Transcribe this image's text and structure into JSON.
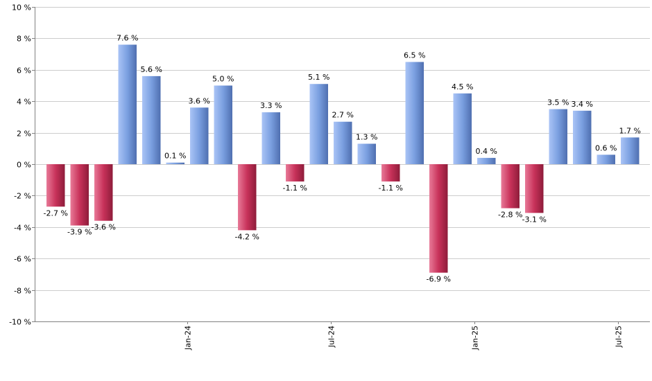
{
  "chart_data": {
    "type": "bar",
    "title": "",
    "xlabel": "",
    "ylabel": "",
    "ylim": [
      -10,
      10
    ],
    "y_ticks": [
      10,
      8,
      6,
      4,
      2,
      0,
      -2,
      -4,
      -6,
      -8,
      -10
    ],
    "y_tick_labels": [
      "10 %",
      "8 %",
      "6 %",
      "4 %",
      "2 %",
      "0 %",
      "-2 %",
      "-4 %",
      "-6 %",
      "-8 %",
      "-10 %"
    ],
    "grid": true,
    "legend": "none",
    "x_tick_labels": [
      {
        "label": "Jan-24",
        "after_index": 5
      },
      {
        "label": "Jul-24",
        "after_index": 11
      },
      {
        "label": "Jan-25",
        "after_index": 17
      },
      {
        "label": "Jul-25",
        "after_index": 23
      }
    ],
    "values": [
      -2.7,
      -3.9,
      -3.6,
      7.6,
      5.6,
      0.1,
      3.6,
      5.0,
      -4.2,
      3.3,
      -1.1,
      5.1,
      2.7,
      1.3,
      -1.1,
      6.5,
      -6.9,
      4.5,
      0.4,
      -2.8,
      -3.1,
      3.5,
      3.4,
      0.6,
      1.7
    ],
    "labels": [
      "-2.7 %",
      "-3.9 %",
      "-3.6 %",
      "7.6 %",
      "5.6 %",
      "0.1 %",
      "3.6 %",
      "5.0 %",
      "-4.2 %",
      "3.3 %",
      "-1.1 %",
      "5.1 %",
      "2.7 %",
      "1.3 %",
      "-1.1 %",
      "6.5 %",
      "-6.9 %",
      "4.5 %",
      "0.4 %",
      "-2.8 %",
      "-3.1 %",
      "3.5 %",
      "3.4 %",
      "0.6 %",
      "1.7 %"
    ],
    "colors": {
      "positive": "#7a9fe0",
      "negative": "#c8325a",
      "grid": "#cccccc",
      "axis": "#808080"
    }
  }
}
